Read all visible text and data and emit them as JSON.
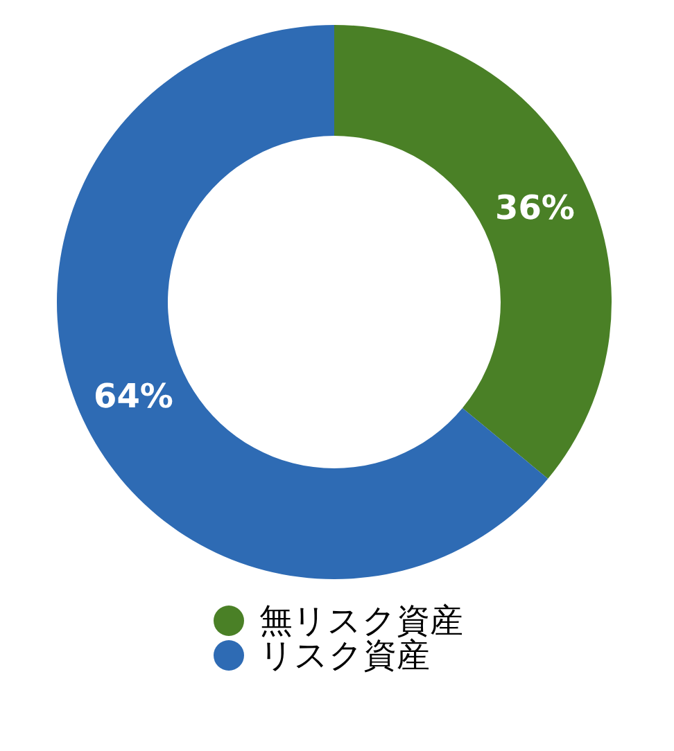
{
  "chart_data": {
    "type": "donut",
    "categories": [
      "無リスク資産",
      "リスク資産"
    ],
    "values": [
      36,
      64
    ],
    "colors": [
      "#4a8026",
      "#2e6bb4"
    ],
    "value_labels": [
      "36%",
      "64%"
    ],
    "legend": "bottom"
  }
}
